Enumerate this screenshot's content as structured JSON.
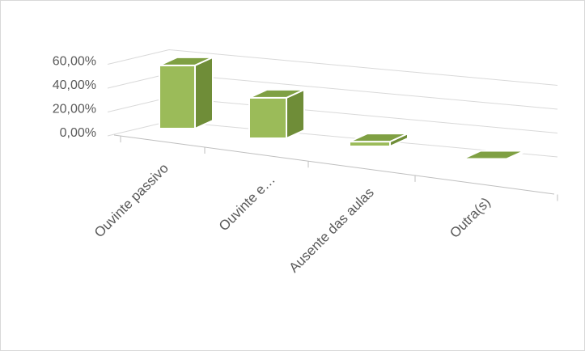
{
  "chart_data": {
    "type": "bar",
    "style": "3d-column",
    "title": "",
    "xlabel": "",
    "ylabel": "",
    "categories": [
      "Ouvinte passivo",
      "Ouvinte e…",
      "Ausente das aulas",
      "Outra(s)"
    ],
    "values": [
      53,
      34,
      4,
      1
    ],
    "y_ticks": [
      "0,00%",
      "20,00%",
      "40,00%",
      "60,00%"
    ],
    "ylim": [
      0,
      60
    ],
    "grid": true,
    "legend": "none",
    "colors": {
      "front": "#9bbb59",
      "side": "#6f8d38",
      "top": "#7fa043",
      "edge": "#ffffff",
      "grid": "#d9d9d9",
      "text": "#595959"
    }
  }
}
